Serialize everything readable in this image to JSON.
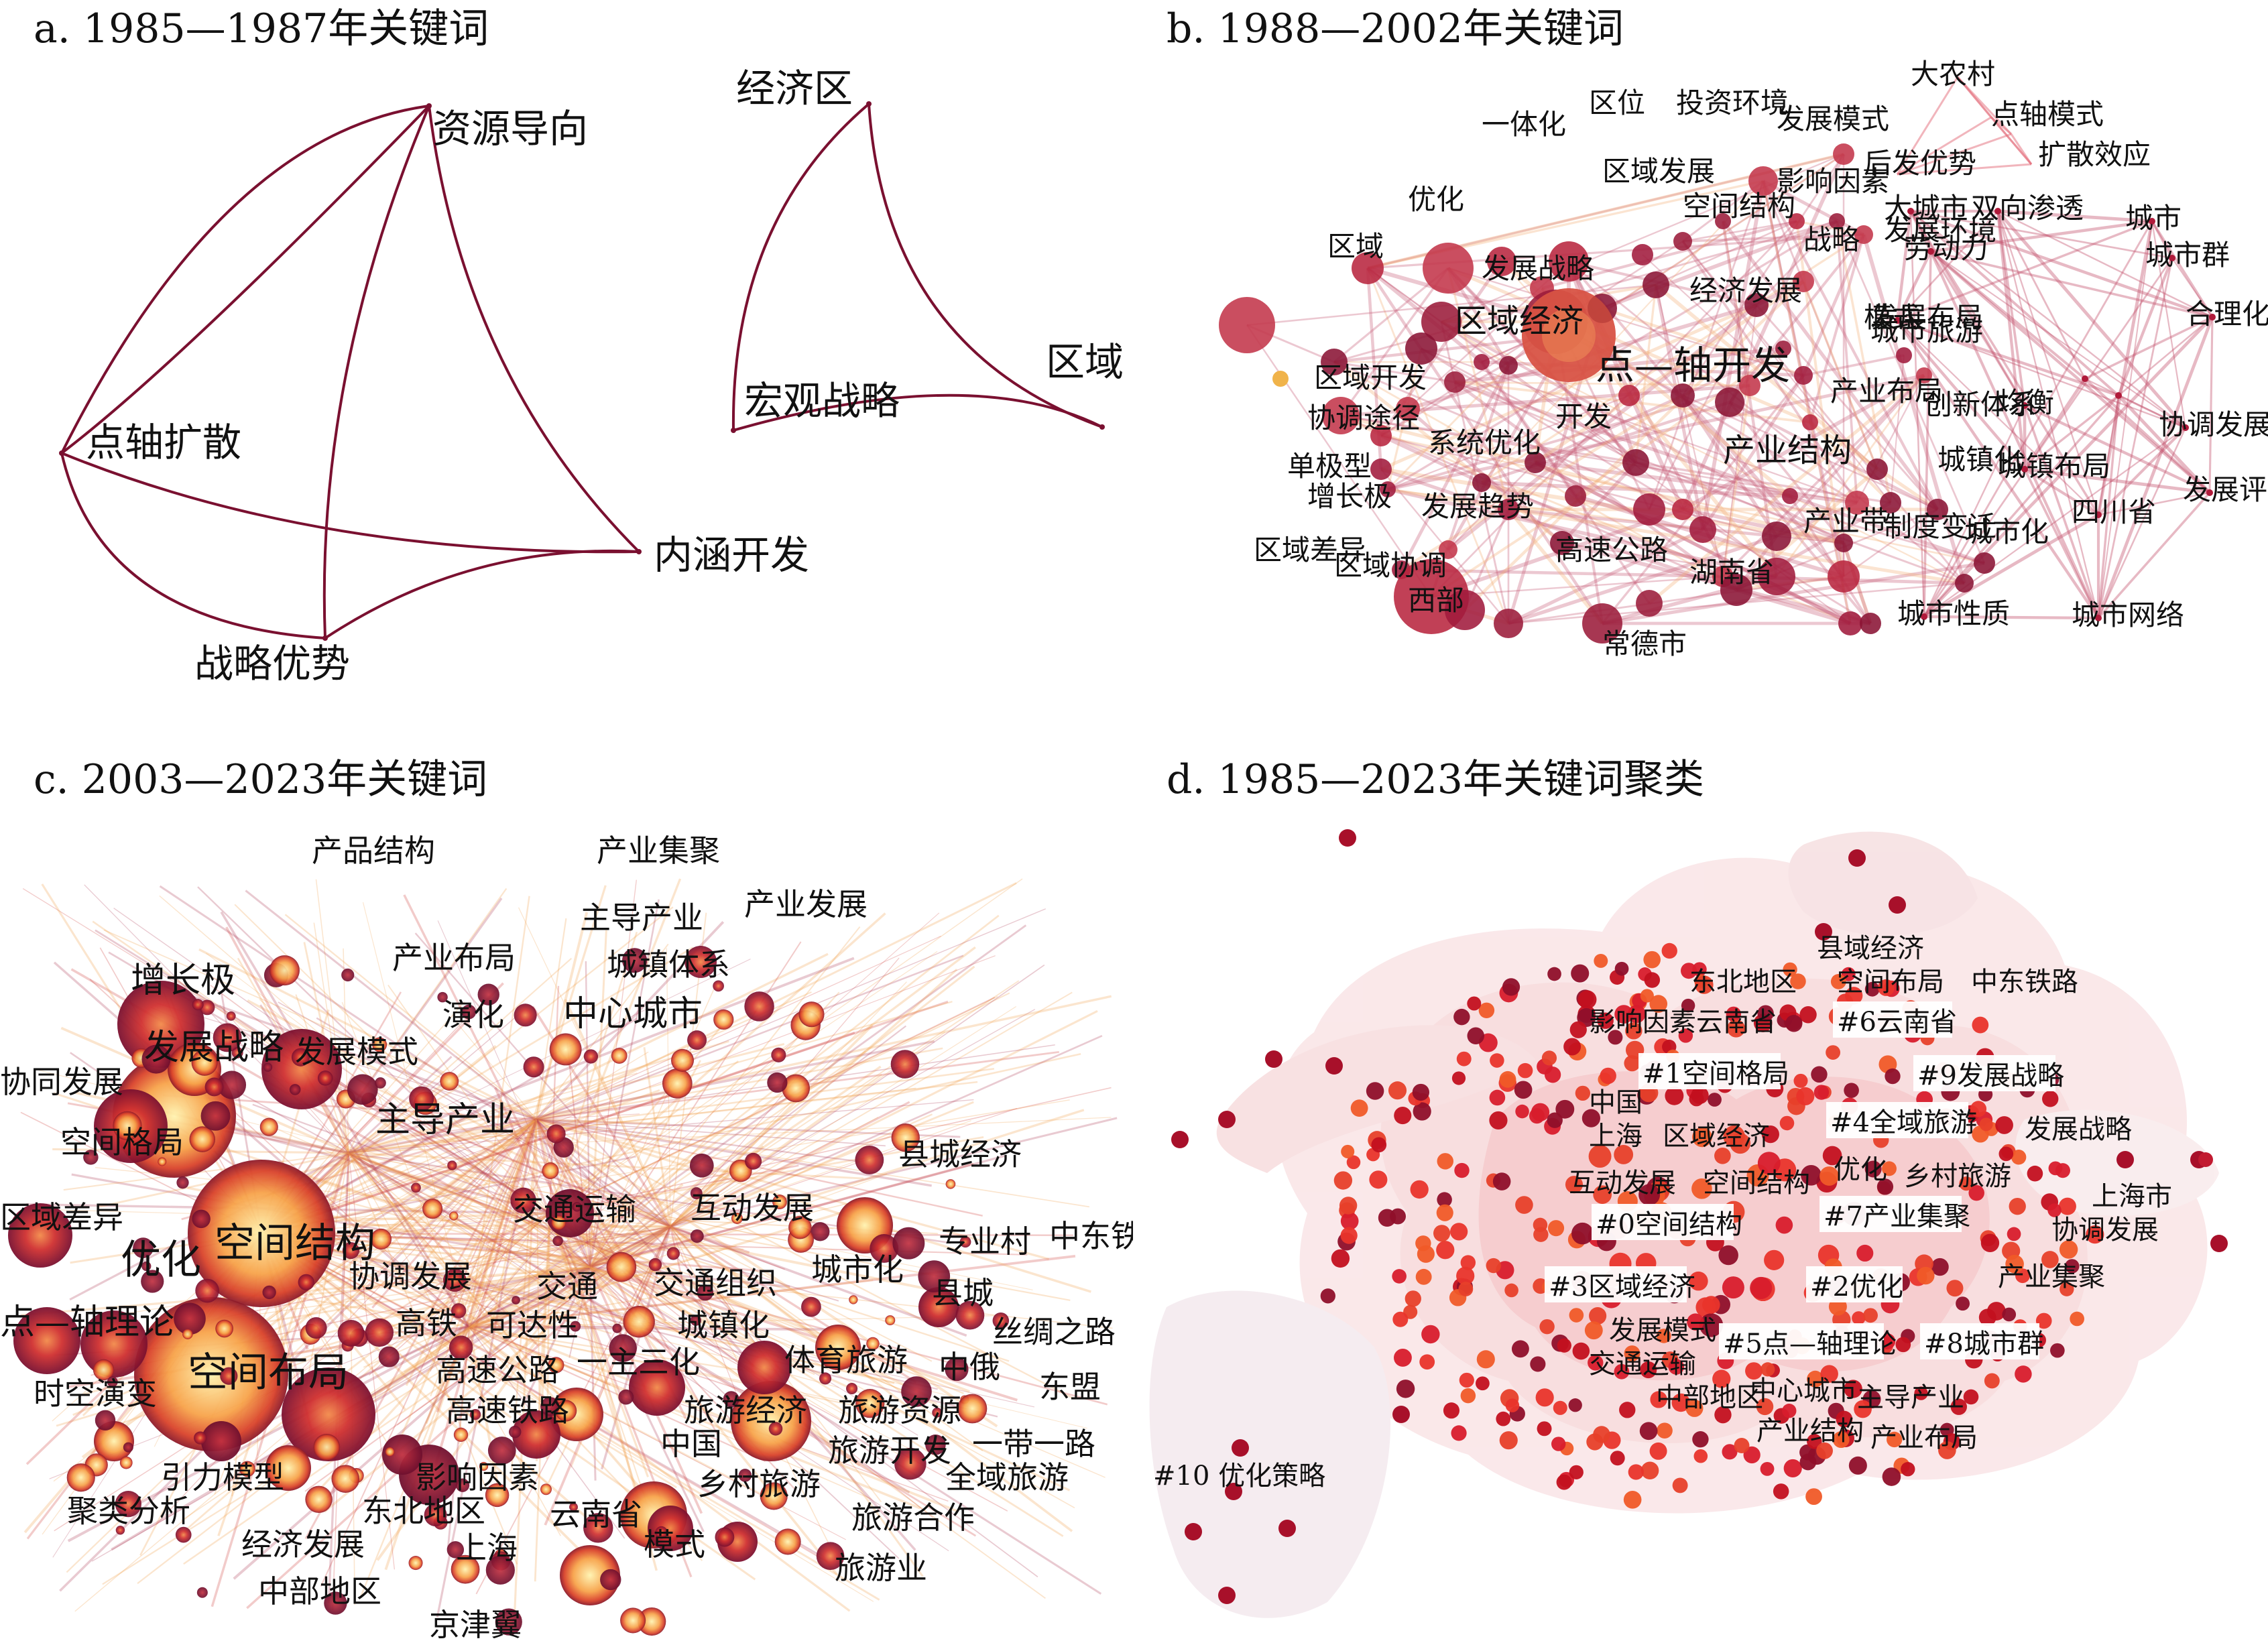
{
  "panels": {
    "a": {
      "title": "a. 1985—1987年关键词",
      "nodes": {
        "ziyuan": "资源导向",
        "dianzhou": "点轴扩散",
        "neihan": "内涵开发",
        "zhanlue": "战略优势",
        "jingji": "经济区",
        "hongguan": "宏观战略",
        "quyu": "区域"
      }
    },
    "b": {
      "title": "b. 1988—2002年关键词",
      "labels": [
        "一体化",
        "区位",
        "投资环境",
        "发展模式",
        "区域发展",
        "影响因素",
        "优化",
        "空间结构",
        "战略",
        "发展环境",
        "区域",
        "发展战略",
        "经济发展",
        "区域经济",
        "模式",
        "城市旅游",
        "点—轴开发",
        "区域开发",
        "产业布局",
        "创新体系",
        "协调途径",
        "开发",
        "系统优化",
        "产业结构",
        "城镇化",
        "单极型",
        "增长极",
        "发展趋势",
        "产业带",
        "城市化",
        "区域差异",
        "高速公路",
        "区域协调",
        "湖南省",
        "西部",
        "常德市",
        "大农村",
        "点轴模式",
        "扩散效应",
        "后发优势",
        "大城市",
        "双向渗透",
        "城市",
        "劳动力",
        "城市群",
        "发展布局",
        "合理化",
        "均衡",
        "协调发展",
        "城镇布局",
        "发展评价",
        "制度变迁",
        "四川省",
        "城市性质",
        "城市网络"
      ]
    },
    "c": {
      "title": "c. 2003—2023年关键词",
      "labels": [
        "产品结构",
        "产业集聚",
        "主导产业",
        "产业发展",
        "产业布局",
        "城镇体系",
        "增长极",
        "演化",
        "中心城市",
        "发展战略",
        "发展模式",
        "协同发展",
        "主导产业",
        "空间格局",
        "县城经济",
        "交通运输",
        "互动发展",
        "区域差异",
        "空间结构",
        "专业村",
        "中东铁路",
        "优化",
        "协调发展",
        "城市化",
        "交通",
        "交通组织",
        "县城",
        "点—轴理论",
        "高铁",
        "可达性",
        "城镇化",
        "丝绸之路",
        "高速公路",
        "一主三化",
        "体育旅游",
        "中俄",
        "空间布局",
        "东盟",
        "时空演变",
        "高速铁路",
        "旅游经济",
        "旅游资源",
        "中国",
        "一带一路",
        "旅游开发",
        "引力模型",
        "影响因素",
        "全域旅游",
        "乡村旅游",
        "聚类分析",
        "东北地区",
        "云南省",
        "旅游合作",
        "经济发展",
        "上海",
        "模式",
        "中部地区",
        "旅游业",
        "京津翼"
      ]
    },
    "d": {
      "title": "d. 1985—2023年关键词聚类",
      "keywords": [
        "县域经济",
        "东北地区",
        "空间布局",
        "中东铁路",
        "影响因素",
        "云南省",
        "中国",
        "上海",
        "发展战略",
        "区域经济",
        "优化",
        "乡村旅游",
        "互动发展",
        "空间结构",
        "上海市",
        "协调发展",
        "产业集聚",
        "发展模式",
        "交通运输",
        "中部地区",
        "中心城市",
        "主导产业",
        "产业结构",
        "产业布局"
      ],
      "clusters": [
        "#0空间结构",
        "#1空间格局",
        "#2优化",
        "#3区域经济",
        "#4全域旅游",
        "#5点—轴理论",
        "#6云南省",
        "#7产业集聚",
        "#8城市群",
        "#9发展战略",
        "#10 优化策略"
      ]
    }
  }
}
